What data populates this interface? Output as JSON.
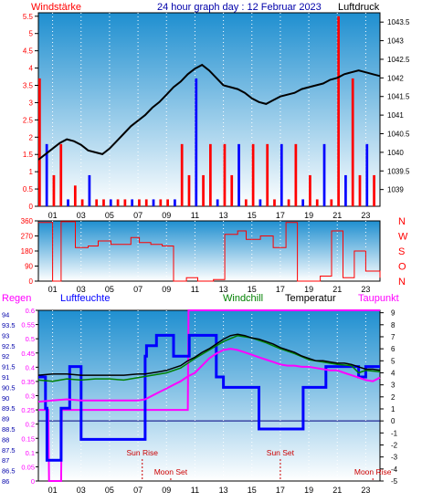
{
  "header": {
    "left_title": "Windstärke",
    "center_title": "24 hour graph day : 12 Februar 2023",
    "right_title": "Luftdruck"
  },
  "colors": {
    "panel_top": "#1f8fd0",
    "panel_bottom": "#ffffff",
    "wind_red": "#ff0000",
    "wind_blue": "#0000ff",
    "pressure_black": "#000000",
    "humidity_blue": "#0000ff",
    "windchill_green": "#008000",
    "temperature_black": "#000000",
    "dewpoint_magenta": "#ff00ff",
    "rain_magenta": "#ff00ff",
    "sun_label": "#cc0000",
    "axis_blue": "#0000aa"
  },
  "chart_data": [
    {
      "type": "line",
      "panel": "wind-pressure",
      "title": "24 hour graph day : 12 Februar 2023",
      "ylabel_left": "Windstärke",
      "ylabel_right": "Luftdruck",
      "left_ticks": [
        "0",
        "0.5",
        "1",
        "1.5",
        "2",
        "2.5",
        "3",
        "3.5",
        "4",
        "4.5",
        "5",
        "5.5"
      ],
      "ylim_left": [
        0,
        5.6
      ],
      "right_ticks": [
        "1039",
        "1039.5",
        "1040",
        "1040.5",
        "1041",
        "1041.5",
        "1042",
        "1042.5",
        "1043",
        "1043.5"
      ],
      "ylim_right": [
        1038.55,
        1043.75
      ],
      "x_ticks": [
        "01",
        "03",
        "05",
        "07",
        "09",
        "11",
        "13",
        "15",
        "17",
        "19",
        "21",
        "23"
      ],
      "xlim": [
        0,
        24
      ],
      "series": [
        {
          "name": "Luftdruck",
          "axis": "right",
          "x": [
            0,
            0.5,
            1,
            1.5,
            2,
            2.5,
            3,
            3.5,
            4,
            4.5,
            5,
            5.5,
            6,
            6.5,
            7,
            7.5,
            8,
            8.5,
            9,
            9.5,
            10,
            10.5,
            11,
            11.5,
            12,
            12.5,
            13,
            13.5,
            14,
            14.5,
            15,
            15.5,
            16,
            16.5,
            17,
            17.5,
            18,
            18.5,
            19,
            19.5,
            20,
            20.5,
            21,
            21.5,
            22,
            22.5,
            23,
            23.5,
            24
          ],
          "values": [
            1039.8,
            1039.95,
            1040.1,
            1040.25,
            1040.35,
            1040.3,
            1040.2,
            1040.05,
            1040.0,
            1039.95,
            1040.1,
            1040.3,
            1040.5,
            1040.7,
            1040.85,
            1041.0,
            1041.2,
            1041.35,
            1041.55,
            1041.75,
            1041.9,
            1042.1,
            1042.25,
            1042.35,
            1042.2,
            1042.0,
            1041.8,
            1041.75,
            1041.7,
            1041.6,
            1041.45,
            1041.35,
            1041.3,
            1041.4,
            1041.5,
            1041.55,
            1041.6,
            1041.7,
            1041.75,
            1041.8,
            1041.85,
            1041.95,
            1042.0,
            1042.1,
            1042.15,
            1042.2,
            1042.15,
            1042.1,
            1042.05
          ]
        },
        {
          "name": "Windstärke",
          "axis": "left",
          "x": [
            0,
            0.5,
            1,
            1.5,
            2,
            2.5,
            3,
            3.5,
            4,
            4.5,
            5,
            5.5,
            6,
            6.5,
            7,
            7.5,
            8,
            8.5,
            9,
            9.5,
            10,
            10.5,
            11,
            11.5,
            12,
            12.5,
            13,
            13.5,
            14,
            14.5,
            15,
            15.5,
            16,
            16.5,
            17,
            17.5,
            18,
            18.5,
            19,
            19.5,
            20,
            20.5,
            21,
            21.5,
            22,
            22.5,
            23,
            23.5,
            24
          ],
          "values": [
            3.7,
            1.8,
            0.9,
            1.8,
            0.2,
            0.6,
            0.2,
            0.9,
            0.2,
            0.2,
            0.2,
            0.2,
            0.2,
            0.2,
            0.2,
            0.2,
            0.2,
            0.2,
            0.2,
            0.2,
            1.8,
            0.9,
            3.7,
            0.9,
            1.8,
            0.2,
            1.8,
            0.9,
            1.8,
            0.2,
            1.8,
            0.2,
            1.8,
            0.2,
            1.8,
            0.2,
            1.8,
            0.2,
            0.9,
            0.2,
            1.8,
            0.2,
            5.5,
            0.9,
            3.7,
            0.9,
            1.8,
            0.9,
            1.8
          ]
        }
      ]
    },
    {
      "type": "line",
      "panel": "wind-direction",
      "left_ticks": [
        "0",
        "90",
        "180",
        "270",
        "360"
      ],
      "ylim": [
        0,
        360
      ],
      "right_labels": [
        "N",
        "W",
        "S",
        "O",
        "N"
      ],
      "x_ticks": [
        "01",
        "03",
        "05",
        "07",
        "09",
        "11",
        "13",
        "15",
        "17",
        "19",
        "21",
        "23"
      ],
      "xlim": [
        0,
        24
      ],
      "series": [
        {
          "name": "direction",
          "x": [
            0,
            1,
            1.6,
            2.6,
            3.5,
            4.2,
            5.1,
            6.5,
            7.1,
            7.9,
            8.7,
            9.5,
            10.4,
            11.2,
            12.3,
            13.1,
            14.0,
            14.6,
            15.6,
            16.5,
            17.4,
            18.2,
            19.0,
            19.8,
            20.6,
            21.4,
            22.2,
            23.0,
            24.0
          ],
          "values": [
            350,
            0,
            355,
            200,
            210,
            240,
            220,
            260,
            230,
            220,
            210,
            0,
            20,
            0,
            10,
            280,
            300,
            250,
            270,
            200,
            350,
            0,
            0,
            30,
            300,
            20,
            180,
            60,
            20
          ]
        }
      ]
    },
    {
      "type": "line",
      "panel": "climate",
      "legend": [
        "Regen",
        "Luftfeuchte",
        "Windchill",
        "Temperatur",
        "Taupunkt"
      ],
      "humidity_ticks": [
        "86",
        "86.5",
        "87",
        "87.5",
        "88",
        "88.5",
        "89",
        "89.5",
        "90",
        "90.5",
        "91",
        "91.5",
        "92",
        "92.5",
        "93",
        "93.5",
        "94"
      ],
      "ylim_humidity": [
        86,
        94.2
      ],
      "rain_ticks": [
        "0",
        "0.05",
        "0.1",
        "0.15",
        "0.2",
        "0.25",
        "0.3",
        "0.35",
        "0.4",
        "0.45",
        "0.5",
        "0.55",
        "0.6"
      ],
      "ylim_rain": [
        0,
        0.6
      ],
      "temp_ticks": [
        "-5",
        "-4",
        "-3",
        "-2",
        "-1",
        "0",
        "1",
        "2",
        "3",
        "4",
        "5",
        "6",
        "7",
        "8",
        "9"
      ],
      "ylim_temp": [
        -5,
        9.2
      ],
      "x_ticks": [
        "01",
        "03",
        "05",
        "07",
        "09",
        "11",
        "13",
        "15",
        "17",
        "19",
        "21",
        "23"
      ],
      "xlim": [
        0,
        24
      ],
      "annotations": [
        {
          "label": "Sun Rise",
          "x": 7.3
        },
        {
          "label": "Moon Set",
          "x": 9.3
        },
        {
          "label": "Sun Set",
          "x": 17.0
        },
        {
          "label": "Moon Rise",
          "x": 23.5
        }
      ],
      "series": [
        {
          "name": "Luftfeuchte",
          "axis": "humidity",
          "x": [
            0,
            0.5,
            0.6,
            1.5,
            1.6,
            2.1,
            2.2,
            2.5,
            3.0,
            6.5,
            7.0,
            7.3,
            7.5,
            7.6,
            8.2,
            8.3,
            9.0,
            9.5,
            10.5,
            10.6,
            12.0,
            12.5,
            13.0,
            14.0,
            15.0,
            15.5,
            16.0,
            17.5,
            18.0,
            18.6,
            19.0,
            20.0,
            20.2,
            21.0,
            22.0,
            22.5,
            23.0,
            24.0
          ],
          "values": [
            91.0,
            89.5,
            87.0,
            87.0,
            89.5,
            89.5,
            91.5,
            91.5,
            88.0,
            88.0,
            88.0,
            88.0,
            92.0,
            92.5,
            92.5,
            93.0,
            93.0,
            92.0,
            92.0,
            93.0,
            93.0,
            91.0,
            90.5,
            90.5,
            90.5,
            88.5,
            88.5,
            88.5,
            88.5,
            90.5,
            90.5,
            90.5,
            91.5,
            91.5,
            91.5,
            91.0,
            91.5,
            91.5
          ]
        },
        {
          "name": "Temperatur",
          "axis": "temp",
          "x": [
            0,
            1,
            2,
            3,
            4,
            5,
            6,
            7,
            7.5,
            8,
            8.5,
            9,
            9.5,
            10,
            10.5,
            11,
            11.5,
            12,
            12.5,
            13,
            13.5,
            14,
            14.5,
            15,
            15.5,
            16,
            16.5,
            17,
            17.5,
            18,
            18.5,
            19,
            19.5,
            20,
            20.5,
            21,
            21.5,
            22,
            22.5,
            23,
            23.5,
            24
          ],
          "values": [
            3.8,
            3.9,
            3.9,
            3.8,
            3.8,
            3.8,
            3.8,
            3.9,
            3.9,
            4.0,
            4.1,
            4.2,
            4.4,
            4.6,
            5.0,
            5.3,
            5.7,
            6.0,
            6.4,
            6.8,
            7.1,
            7.2,
            7.1,
            6.9,
            6.8,
            6.6,
            6.4,
            6.1,
            5.9,
            5.7,
            5.4,
            5.2,
            5.0,
            5.0,
            4.9,
            4.8,
            4.8,
            4.7,
            4.5,
            4.3,
            4.3,
            4.2
          ]
        },
        {
          "name": "Taupunkt",
          "axis": "temp",
          "x": [
            0,
            1,
            2,
            3,
            4,
            5,
            6,
            7,
            7.5,
            8,
            8.5,
            9,
            9.5,
            10,
            10.5,
            11,
            11.5,
            12,
            12.5,
            13,
            13.5,
            14,
            14.5,
            15,
            15.5,
            16,
            16.5,
            17,
            17.5,
            18,
            18.5,
            19,
            19.5,
            20,
            20.5,
            21,
            21.5,
            22,
            22.5,
            23,
            23.5,
            24
          ],
          "values": [
            1.6,
            1.7,
            1.8,
            1.7,
            1.7,
            1.7,
            1.7,
            1.7,
            1.8,
            2.1,
            2.4,
            2.7,
            3.0,
            3.3,
            3.7,
            4.0,
            4.6,
            5.2,
            5.6,
            5.9,
            6.0,
            5.9,
            5.7,
            5.5,
            5.3,
            5.1,
            4.9,
            4.7,
            4.6,
            4.6,
            4.5,
            4.5,
            4.4,
            4.3,
            4.2,
            4.2,
            4.0,
            3.8,
            3.6,
            3.4,
            3.3,
            3.6
          ]
        },
        {
          "name": "Windchill",
          "axis": "temp",
          "x": [
            0,
            1,
            2,
            3,
            4,
            5,
            6,
            7,
            8,
            9,
            10,
            11,
            12,
            13,
            14,
            15,
            16,
            17,
            18,
            19,
            20,
            21,
            22,
            22.5,
            23,
            24
          ],
          "values": [
            3.4,
            3.3,
            3.5,
            3.4,
            3.5,
            3.5,
            3.4,
            3.6,
            3.8,
            4.0,
            4.4,
            5.2,
            5.9,
            6.6,
            7.1,
            6.9,
            6.5,
            6.0,
            5.6,
            5.1,
            4.9,
            4.7,
            4.6,
            4.0,
            4.2,
            4.1
          ]
        },
        {
          "name": "Regen",
          "axis": "rain",
          "x": [
            0,
            0.7,
            0.75,
            1.6,
            1.65,
            10.5,
            10.55,
            24
          ],
          "values": [
            0.25,
            0.25,
            0.0,
            0.0,
            0.25,
            0.25,
            0.6,
            0.6
          ]
        }
      ]
    }
  ]
}
